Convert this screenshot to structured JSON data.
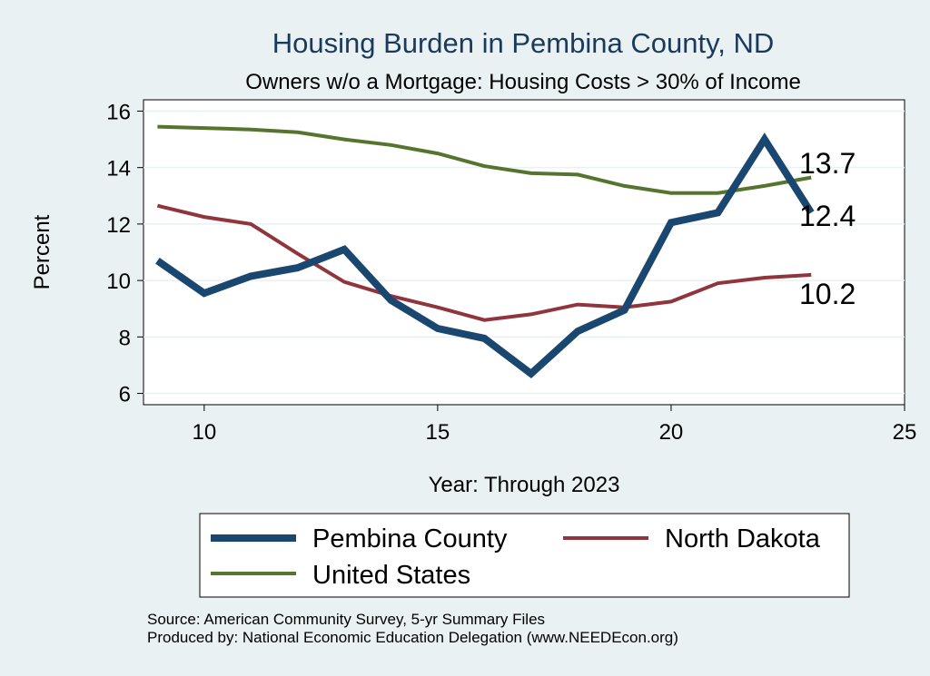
{
  "chart_data": {
    "type": "line",
    "title": "Housing Burden in Pembina County, ND",
    "subtitle": "Owners w/o a Mortgage: Housing Costs > 30% of Income",
    "xlabel": "Year: Through 2023",
    "ylabel": "Percent",
    "xlim": [
      8.7,
      25
    ],
    "ylim": [
      5.6,
      16.4
    ],
    "xticks": [
      10,
      15,
      20,
      25
    ],
    "yticks": [
      6,
      8,
      10,
      12,
      14,
      16
    ],
    "x": [
      9,
      10,
      11,
      12,
      13,
      14,
      15,
      16,
      17,
      18,
      19,
      20,
      21,
      22,
      23
    ],
    "series": [
      {
        "name": "Pembina County",
        "color": "#1a476f",
        "values": [
          10.7,
          9.55,
          10.15,
          10.45,
          11.1,
          9.3,
          8.3,
          7.95,
          6.7,
          8.2,
          8.95,
          12.05,
          12.4,
          15.0,
          12.4
        ],
        "end_label": "12.4"
      },
      {
        "name": "North Dakota",
        "color": "#90353b",
        "values": [
          12.65,
          12.25,
          12.0,
          10.95,
          9.95,
          9.45,
          9.05,
          8.6,
          8.8,
          9.15,
          9.05,
          9.25,
          9.9,
          10.1,
          10.2
        ],
        "end_label": "10.2"
      },
      {
        "name": "United States",
        "color": "#55752f",
        "values": [
          15.45,
          15.4,
          15.35,
          15.25,
          15.0,
          14.8,
          14.5,
          14.05,
          13.8,
          13.75,
          13.35,
          13.1,
          13.1,
          13.35,
          13.65
        ],
        "end_label": "13.7"
      }
    ],
    "legend": [
      "Pembina County",
      "North Dakota",
      "United States"
    ],
    "legend_position": "bottom"
  },
  "footer": {
    "source": "Source: American Community Survey, 5-yr Summary Files",
    "produced": "Produced by: National Economic Education Delegation (www.NEEDEcon.org)"
  }
}
